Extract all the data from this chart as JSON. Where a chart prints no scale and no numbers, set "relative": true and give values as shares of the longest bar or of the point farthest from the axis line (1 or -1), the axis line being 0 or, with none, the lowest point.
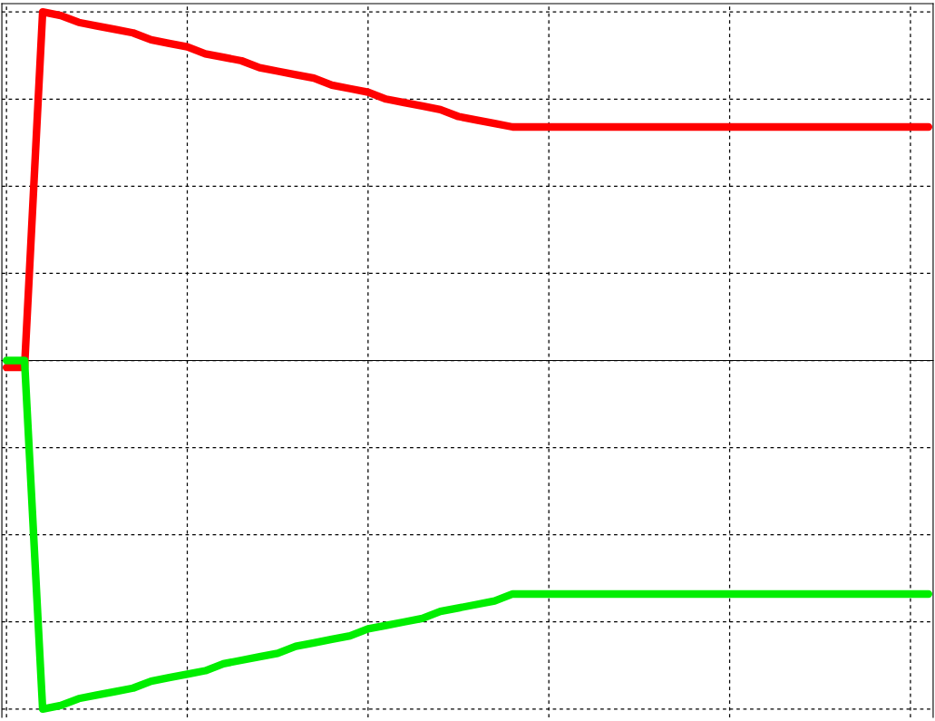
{
  "chart_data": {
    "type": "line",
    "relative": true,
    "grid": true,
    "line_style": "solid",
    "marker": "none",
    "tick_labels": false,
    "categories": [
      null,
      null,
      null,
      null,
      null,
      null,
      null,
      null,
      null,
      null,
      null,
      null,
      null,
      null,
      null,
      null,
      null,
      null,
      null,
      null,
      null,
      null,
      null,
      null,
      null,
      null,
      null,
      null,
      null,
      null,
      null,
      null,
      null,
      null,
      null,
      null,
      null,
      null,
      null,
      null,
      null,
      null,
      null,
      null,
      null,
      null,
      null,
      null,
      null,
      null,
      null,
      null
    ],
    "series": [
      {
        "color": "#ff0000",
        "values": [
          -0.02,
          -0.02,
          1.0,
          0.99,
          0.97,
          0.96,
          0.95,
          0.94,
          0.92,
          0.91,
          0.9,
          0.88,
          0.87,
          0.86,
          0.84,
          0.83,
          0.82,
          0.81,
          0.79,
          0.78,
          0.77,
          0.75,
          0.74,
          0.73,
          0.72,
          0.7,
          0.69,
          0.68,
          0.67,
          0.67,
          0.67,
          0.67,
          0.67,
          0.67,
          0.67,
          0.67,
          0.67,
          0.67,
          0.67,
          0.67,
          0.67,
          0.67,
          0.67,
          0.67,
          0.67,
          0.67,
          0.67,
          0.67,
          0.67,
          0.67,
          0.67,
          0.67
        ]
      },
      {
        "color": "#00ee00",
        "values": [
          0.0,
          0.0,
          -1.0,
          -0.99,
          -0.97,
          -0.96,
          -0.95,
          -0.94,
          -0.92,
          -0.91,
          -0.9,
          -0.89,
          -0.87,
          -0.86,
          -0.85,
          -0.84,
          -0.82,
          -0.81,
          -0.8,
          -0.79,
          -0.77,
          -0.76,
          -0.75,
          -0.74,
          -0.72,
          -0.71,
          -0.7,
          -0.69,
          -0.67,
          -0.67,
          -0.67,
          -0.67,
          -0.67,
          -0.67,
          -0.67,
          -0.67,
          -0.67,
          -0.67,
          -0.67,
          -0.67,
          -0.67,
          -0.67,
          -0.67,
          -0.67,
          -0.67,
          -0.67,
          -0.67,
          -0.67,
          -0.67,
          -0.67,
          -0.67,
          -0.67
        ]
      }
    ]
  }
}
